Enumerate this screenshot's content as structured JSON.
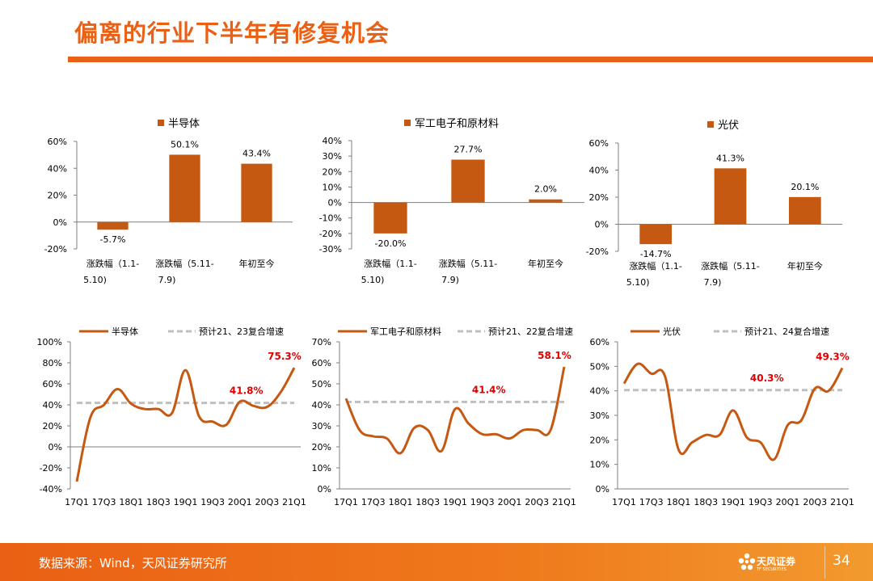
{
  "title": "偏离的行业下半年有修复机会",
  "footer": {
    "source": "数据来源：Wind，天风证券研究所",
    "page": "34",
    "logo_text": "天风证券",
    "logo_sub": "TF SECURITIES"
  },
  "colors": {
    "accent": "#ea6014",
    "bar": "#c65911",
    "line": "#c65911",
    "dashed": "#bfbfbf",
    "label_red": "#e00000",
    "footer": "#ea6014"
  },
  "chart_data": [
    {
      "type": "bar",
      "legend": [
        "半导体"
      ],
      "categories": [
        "涨跌幅（1.1-5.10)",
        "涨跌幅（5.11-7.9)",
        "年初至今"
      ],
      "series": [
        {
          "name": "半导体",
          "values": [
            -5.7,
            50.1,
            43.4
          ]
        }
      ],
      "value_labels": [
        "-5.7%",
        "50.1%",
        "43.4%"
      ],
      "ylim": [
        -20,
        60
      ],
      "yticks": [
        "-20%",
        "0%",
        "20%",
        "40%",
        "60%"
      ]
    },
    {
      "type": "bar",
      "legend": [
        "军工电子和原材料"
      ],
      "categories": [
        "涨跌幅（1.1-5.10)",
        "涨跌幅（5.11-7.9)",
        "年初至今"
      ],
      "series": [
        {
          "name": "军工电子和原材料",
          "values": [
            -20.0,
            27.7,
            2.0
          ]
        }
      ],
      "value_labels": [
        "-20.0%",
        "27.7%",
        "2.0%"
      ],
      "ylim": [
        -30,
        40
      ],
      "yticks": [
        "-30%",
        "-20%",
        "-10%",
        "0%",
        "10%",
        "20%",
        "30%",
        "40%"
      ]
    },
    {
      "type": "bar",
      "legend": [
        "光伏"
      ],
      "categories": [
        "涨跌幅（1.1-5.10)",
        "涨跌幅（5.11-7.9)",
        "年初至今"
      ],
      "series": [
        {
          "name": "光伏",
          "values": [
            -14.7,
            41.3,
            20.1
          ]
        }
      ],
      "value_labels": [
        "-14.7%",
        "41.3%",
        "20.1%"
      ],
      "ylim": [
        -20,
        60
      ],
      "yticks": [
        "-20%",
        "0%",
        "20%",
        "40%",
        "60%"
      ]
    },
    {
      "type": "line",
      "legend": [
        "半导体",
        "预计21、23复合增速"
      ],
      "x": [
        "17Q1",
        "17Q2",
        "17Q3",
        "17Q4",
        "18Q1",
        "18Q2",
        "18Q3",
        "18Q4",
        "19Q1",
        "19Q2",
        "19Q3",
        "19Q4",
        "20Q1",
        "20Q2",
        "20Q3",
        "20Q4",
        "21Q1"
      ],
      "xticks": [
        "17Q1",
        "17Q3",
        "18Q1",
        "18Q3",
        "19Q1",
        "19Q3",
        "20Q1",
        "20Q3",
        "21Q1"
      ],
      "series": [
        {
          "name": "半导体",
          "values": [
            -33,
            28,
            40,
            55,
            41,
            36,
            36,
            32,
            73,
            29,
            24,
            21,
            43,
            39,
            38,
            52,
            75.3
          ]
        },
        {
          "name": "预计21、23复合增速",
          "values": [
            41.8,
            41.8,
            41.8,
            41.8,
            41.8,
            41.8,
            41.8,
            41.8,
            41.8,
            41.8,
            41.8,
            41.8,
            41.8,
            41.8,
            41.8,
            41.8,
            41.8
          ],
          "dashed": true
        }
      ],
      "annotations": [
        {
          "text": "75.3%",
          "x": "21Q1",
          "y": 75.3
        },
        {
          "text": "41.8%",
          "x": "20Q1",
          "y": 41.8
        }
      ],
      "ylim": [
        -40,
        100
      ],
      "yticks": [
        "-40%",
        "-20%",
        "0%",
        "20%",
        "40%",
        "60%",
        "80%",
        "100%"
      ]
    },
    {
      "type": "line",
      "legend": [
        "军工电子和原材料",
        "预计21、22复合增速"
      ],
      "x": [
        "17Q1",
        "17Q2",
        "17Q3",
        "17Q4",
        "18Q1",
        "18Q2",
        "18Q3",
        "18Q4",
        "19Q1",
        "19Q2",
        "19Q3",
        "19Q4",
        "20Q1",
        "20Q2",
        "20Q3",
        "20Q4",
        "21Q1"
      ],
      "xticks": [
        "17Q1",
        "17Q3",
        "18Q1",
        "18Q3",
        "19Q1",
        "19Q3",
        "20Q1",
        "20Q3",
        "21Q1"
      ],
      "series": [
        {
          "name": "军工电子和原材料",
          "values": [
            43,
            28,
            25,
            24,
            17,
            29,
            28,
            18,
            38,
            31,
            26,
            26,
            24,
            28,
            28,
            28,
            58.1
          ]
        },
        {
          "name": "预计21、22复合增速",
          "values": [
            41.4,
            41.4,
            41.4,
            41.4,
            41.4,
            41.4,
            41.4,
            41.4,
            41.4,
            41.4,
            41.4,
            41.4,
            41.4,
            41.4,
            41.4,
            41.4,
            41.4
          ],
          "dashed": true
        }
      ],
      "annotations": [
        {
          "text": "58.1%",
          "x": "21Q1",
          "y": 58.1
        },
        {
          "text": "41.4%",
          "x": "19Q3",
          "y": 41.4
        }
      ],
      "ylim": [
        0,
        70
      ],
      "yticks": [
        "0%",
        "10%",
        "20%",
        "30%",
        "40%",
        "50%",
        "60%",
        "70%"
      ]
    },
    {
      "type": "line",
      "legend": [
        "光伏",
        "预计21、24复合增速"
      ],
      "x": [
        "17Q1",
        "17Q2",
        "17Q3",
        "17Q4",
        "18Q1",
        "18Q2",
        "18Q3",
        "18Q4",
        "19Q1",
        "19Q2",
        "19Q3",
        "19Q4",
        "20Q1",
        "20Q2",
        "20Q3",
        "20Q4",
        "21Q1"
      ],
      "xticks": [
        "17Q1",
        "17Q3",
        "18Q1",
        "18Q3",
        "19Q1",
        "19Q3",
        "20Q1",
        "20Q3",
        "21Q1"
      ],
      "series": [
        {
          "name": "光伏",
          "values": [
            43,
            51,
            47,
            46,
            16,
            19,
            22,
            22,
            32,
            21,
            19,
            12,
            26,
            28,
            41,
            40,
            49.3
          ]
        },
        {
          "name": "预计21、24复合增速",
          "values": [
            40.3,
            40.3,
            40.3,
            40.3,
            40.3,
            40.3,
            40.3,
            40.3,
            40.3,
            40.3,
            40.3,
            40.3,
            40.3,
            40.3,
            40.3,
            40.3,
            40.3
          ],
          "dashed": true
        }
      ],
      "annotations": [
        {
          "text": "49.3%",
          "x": "21Q1",
          "y": 49.3
        },
        {
          "text": "40.3%",
          "x": "19Q3",
          "y": 40.3
        }
      ],
      "ylim": [
        0,
        60
      ],
      "yticks": [
        "0%",
        "10%",
        "20%",
        "30%",
        "40%",
        "50%",
        "60%"
      ]
    }
  ]
}
